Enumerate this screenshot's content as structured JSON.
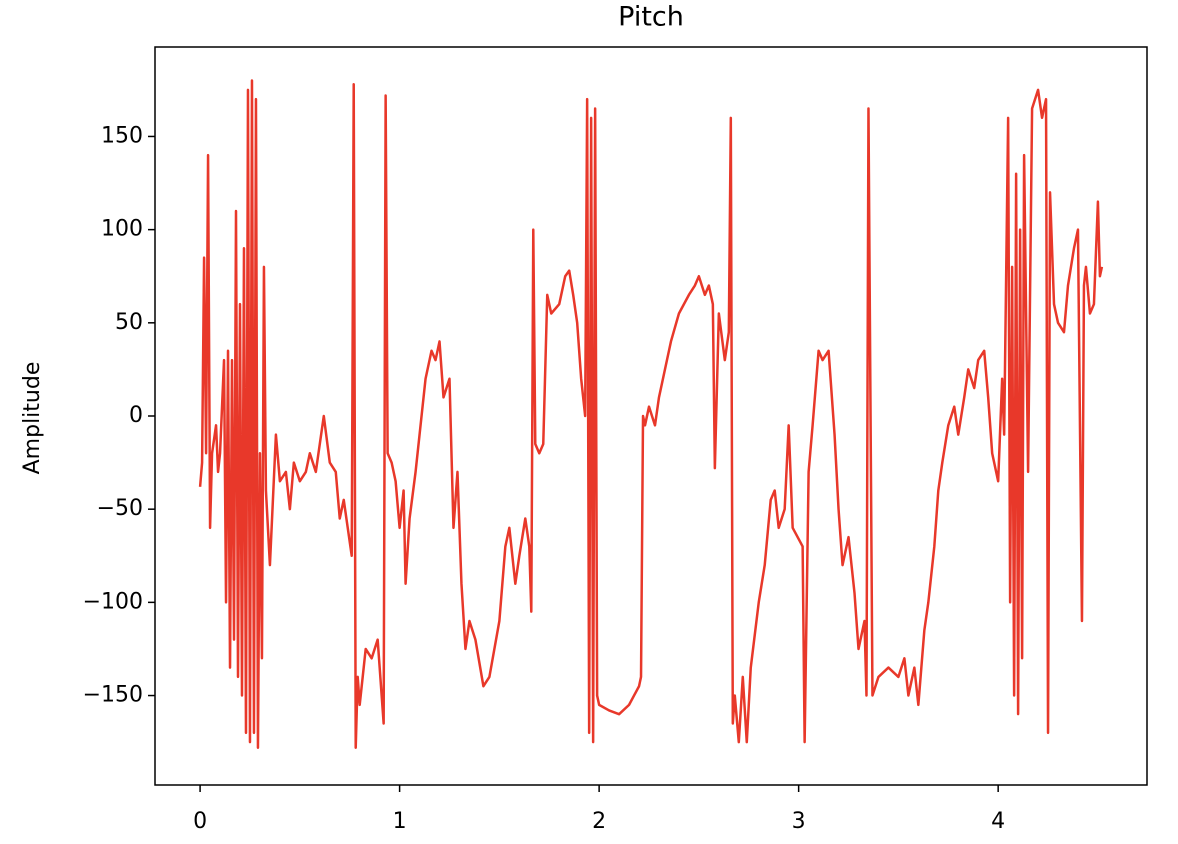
{
  "chart_data": {
    "type": "line",
    "title": "Pitch",
    "y_label": "Amplitude",
    "x": [
      0,
      0.01,
      0.02,
      0.03,
      0.04,
      0.05,
      0.06,
      0.08,
      0.09,
      0.1,
      0.12,
      0.13,
      0.14,
      0.15,
      0.16,
      0.17,
      0.18,
      0.19,
      0.2,
      0.21,
      0.22,
      0.23,
      0.24,
      0.25,
      0.26,
      0.27,
      0.28,
      0.29,
      0.3,
      0.31,
      0.32,
      0.33,
      0.35,
      0.38,
      0.4,
      0.43,
      0.45,
      0.47,
      0.5,
      0.53,
      0.55,
      0.58,
      0.6,
      0.62,
      0.65,
      0.68,
      0.7,
      0.72,
      0.74,
      0.76,
      0.77,
      0.78,
      0.79,
      0.8,
      0.83,
      0.86,
      0.89,
      0.9,
      0.92,
      0.93,
      0.94,
      0.96,
      0.98,
      1.0,
      1.02,
      1.03,
      1.05,
      1.08,
      1.1,
      1.13,
      1.16,
      1.18,
      1.2,
      1.22,
      1.25,
      1.27,
      1.29,
      1.31,
      1.33,
      1.35,
      1.38,
      1.42,
      1.45,
      1.5,
      1.53,
      1.55,
      1.58,
      1.6,
      1.63,
      1.65,
      1.66,
      1.67,
      1.68,
      1.7,
      1.72,
      1.74,
      1.76,
      1.8,
      1.83,
      1.85,
      1.87,
      1.89,
      1.91,
      1.93,
      1.94,
      1.95,
      1.96,
      1.97,
      1.98,
      1.99,
      2.0,
      2.05,
      2.1,
      2.15,
      2.2,
      2.21,
      2.22,
      2.23,
      2.25,
      2.28,
      2.3,
      2.33,
      2.36,
      2.4,
      2.45,
      2.48,
      2.5,
      2.53,
      2.55,
      2.57,
      2.58,
      2.6,
      2.63,
      2.65,
      2.66,
      2.67,
      2.68,
      2.7,
      2.72,
      2.74,
      2.76,
      2.8,
      2.83,
      2.86,
      2.88,
      2.9,
      2.93,
      2.95,
      2.97,
      3.02,
      3.03,
      3.05,
      3.07,
      3.1,
      3.12,
      3.15,
      3.18,
      3.2,
      3.22,
      3.25,
      3.28,
      3.3,
      3.33,
      3.34,
      3.35,
      3.37,
      3.4,
      3.45,
      3.5,
      3.53,
      3.55,
      3.58,
      3.6,
      3.63,
      3.65,
      3.68,
      3.7,
      3.72,
      3.75,
      3.78,
      3.8,
      3.83,
      3.85,
      3.88,
      3.9,
      3.93,
      3.95,
      3.97,
      4.0,
      4.02,
      4.03,
      4.05,
      4.06,
      4.07,
      4.08,
      4.09,
      4.1,
      4.11,
      4.12,
      4.13,
      4.15,
      4.17,
      4.2,
      4.22,
      4.24,
      4.25,
      4.26,
      4.28,
      4.3,
      4.33,
      4.35,
      4.38,
      4.4,
      4.42,
      4.43,
      4.44,
      4.46,
      4.48,
      4.5,
      4.51,
      4.52
    ],
    "series": [
      {
        "color": "#e8382a",
        "values": [
          -38,
          -25,
          85,
          -20,
          140,
          -60,
          -20,
          -5,
          -30,
          -20,
          30,
          -100,
          35,
          -135,
          30,
          -120,
          110,
          -140,
          60,
          -150,
          90,
          -170,
          175,
          -175,
          180,
          -170,
          170,
          -178,
          -20,
          -130,
          80,
          -40,
          -80,
          -10,
          -35,
          -30,
          -50,
          -25,
          -35,
          -30,
          -20,
          -30,
          -15,
          0,
          -25,
          -30,
          -55,
          -45,
          -60,
          -75,
          178,
          -178,
          -140,
          -155,
          -125,
          -130,
          -120,
          -135,
          -165,
          172,
          -20,
          -25,
          -35,
          -60,
          -40,
          -90,
          -55,
          -30,
          -10,
          20,
          35,
          30,
          40,
          10,
          20,
          -60,
          -30,
          -90,
          -125,
          -110,
          -120,
          -145,
          -140,
          -110,
          -70,
          -60,
          -90,
          -75,
          -55,
          -70,
          -105,
          100,
          -15,
          -20,
          -15,
          65,
          55,
          60,
          75,
          78,
          65,
          50,
          20,
          0,
          170,
          -170,
          160,
          -175,
          165,
          -150,
          -155,
          -158,
          -160,
          -155,
          -145,
          -140,
          0,
          -5,
          5,
          -5,
          10,
          25,
          40,
          55,
          65,
          70,
          75,
          65,
          70,
          60,
          -28,
          55,
          30,
          45,
          160,
          -165,
          -150,
          -175,
          -140,
          -175,
          -135,
          -100,
          -80,
          -45,
          -40,
          -60,
          -50,
          -5,
          -60,
          -70,
          -175,
          -30,
          -5,
          35,
          30,
          35,
          -10,
          -50,
          -80,
          -65,
          -95,
          -125,
          -110,
          -150,
          165,
          -150,
          -140,
          -135,
          -140,
          -130,
          -150,
          -135,
          -155,
          -115,
          -100,
          -70,
          -40,
          -25,
          -5,
          5,
          -10,
          10,
          25,
          15,
          30,
          35,
          10,
          -20,
          -35,
          20,
          -10,
          160,
          -100,
          80,
          -150,
          130,
          -160,
          100,
          -130,
          140,
          -30,
          165,
          175,
          160,
          170,
          -170,
          120,
          60,
          50,
          45,
          70,
          90,
          100,
          -110,
          70,
          80,
          55,
          60,
          115,
          75,
          80
        ]
      }
    ],
    "xlim": [
      -0.226,
      4.746
    ],
    "xticks": [
      0,
      1,
      2,
      3,
      4
    ],
    "ylim": [
      -198,
      198
    ],
    "yticks": [
      {
        "value": -150,
        "label": "−150"
      },
      {
        "value": -100,
        "label": "−100"
      },
      {
        "value": -50,
        "label": "−50"
      },
      0,
      50,
      100,
      150
    ]
  }
}
